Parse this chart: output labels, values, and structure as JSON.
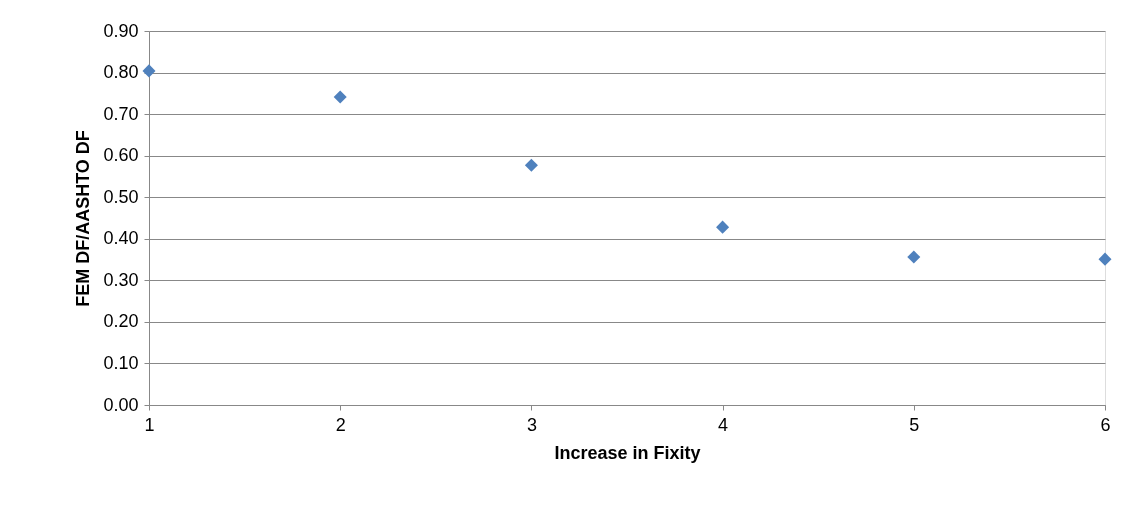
{
  "chart_data": {
    "type": "scatter",
    "xlabel": "Increase in Fixity",
    "ylabel": "FEM DF/AASHTO DF",
    "x": [
      1,
      2,
      3,
      4,
      5,
      6
    ],
    "series": [
      {
        "color": "#4f81bd",
        "values": [
          0.804,
          0.741,
          0.577,
          0.428,
          0.356,
          0.351
        ]
      }
    ],
    "xlim": [
      1,
      6
    ],
    "xticks": [
      1,
      2,
      3,
      4,
      5,
      6
    ],
    "ylim": [
      0,
      0.9
    ],
    "yticks": [
      {
        "value": 0,
        "label": "0.00"
      },
      {
        "value": 0.1,
        "label": "0.10"
      },
      {
        "value": 0.2,
        "label": "0.20"
      },
      {
        "value": 0.3,
        "label": "0.30"
      },
      {
        "value": 0.4,
        "label": "0.40"
      },
      {
        "value": 0.5,
        "label": "0.50"
      },
      {
        "value": 0.6,
        "label": "0.60"
      },
      {
        "value": 0.7,
        "label": "0.70"
      },
      {
        "value": 0.8,
        "label": "0.80"
      },
      {
        "value": 0.9,
        "label": "0.90"
      }
    ],
    "grid": "y",
    "marker": "diamond"
  }
}
